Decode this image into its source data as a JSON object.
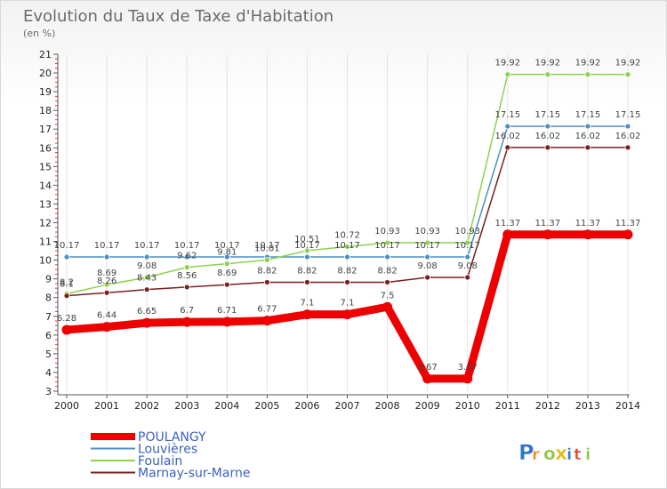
{
  "chart_data": {
    "type": "line",
    "title": "Evolution du Taux de Taxe d'Habitation",
    "subtitle": "(en %)",
    "x": [
      "2000",
      "2001",
      "2002",
      "2003",
      "2004",
      "2005",
      "2006",
      "2007",
      "2008",
      "2009",
      "2010",
      "2011",
      "2012",
      "2013",
      "2014"
    ],
    "ylim": [
      3,
      21
    ],
    "yticks": [
      3,
      4,
      5,
      6,
      7,
      8,
      9,
      10,
      11,
      12,
      13,
      14,
      15,
      16,
      17,
      18,
      19,
      20,
      21
    ],
    "grid": "vertical",
    "legend_position": "bottom-left",
    "series": [
      {
        "name": "POULANGY",
        "color": "#ee0000",
        "values": [
          6.28,
          6.44,
          6.65,
          6.7,
          6.71,
          6.77,
          7.1,
          7.1,
          7.5,
          3.67,
          3.67,
          11.37,
          11.37,
          11.37,
          11.37
        ],
        "labels": [
          "6.28",
          "6.44",
          "6.65",
          "6.7",
          "6.71",
          "6.77",
          "7.1",
          "7.1",
          "7.5",
          "3.67",
          "3.67",
          "11.37",
          "11.37",
          "11.37",
          "11.37"
        ]
      },
      {
        "name": "Louvières",
        "color": "#4d8fc6",
        "values": [
          10.17,
          10.17,
          10.17,
          10.17,
          10.17,
          10.17,
          10.17,
          10.17,
          10.17,
          10.17,
          10.17,
          17.15,
          17.15,
          17.15,
          17.15
        ],
        "labels": [
          "10.17",
          "10.17",
          "10.17",
          "10.17",
          "10.17",
          "10.17",
          "10.17",
          "10.17",
          "10.17",
          "10.17",
          "10.17",
          "17.15",
          "17.15",
          "17.15",
          "17.15"
        ]
      },
      {
        "name": "Foulain",
        "color": "#8fd14f",
        "values": [
          8.2,
          8.69,
          9.08,
          9.62,
          9.81,
          10.01,
          10.51,
          10.72,
          10.93,
          10.93,
          10.93,
          19.92,
          19.92,
          19.92,
          19.92
        ],
        "labels": [
          "8.2",
          "8.69",
          "9.08",
          "9.62",
          "9.81",
          "10.01",
          "10.51",
          "10.72",
          "10.93",
          "10.93",
          "10.93",
          "19.92",
          "19.92",
          "19.92",
          "19.92"
        ]
      },
      {
        "name": "Marnay-sur-Marne",
        "color": "#7a1f1f",
        "values": [
          8.1,
          8.26,
          8.43,
          8.56,
          8.69,
          8.82,
          8.82,
          8.82,
          8.82,
          9.08,
          9.08,
          16.02,
          16.02,
          16.02,
          16.02
        ],
        "labels": [
          "8.1",
          "8.26",
          "8.43",
          "8.56",
          "8.69",
          "8.82",
          "8.82",
          "8.82",
          "8.82",
          "9.08",
          "9.08",
          "16.02",
          "16.02",
          "16.02",
          "16.02"
        ]
      }
    ]
  },
  "legend_text_color": "#3a5fc4",
  "brand": {
    "letters": [
      "P",
      "r",
      "o",
      "x",
      "i",
      "t",
      "i"
    ],
    "colors": [
      "#2f76c8",
      "#f08a1c",
      "#8cc63f",
      "#e9b61a",
      "#2f76c8",
      "#e24a2f",
      "#8cc63f"
    ]
  }
}
